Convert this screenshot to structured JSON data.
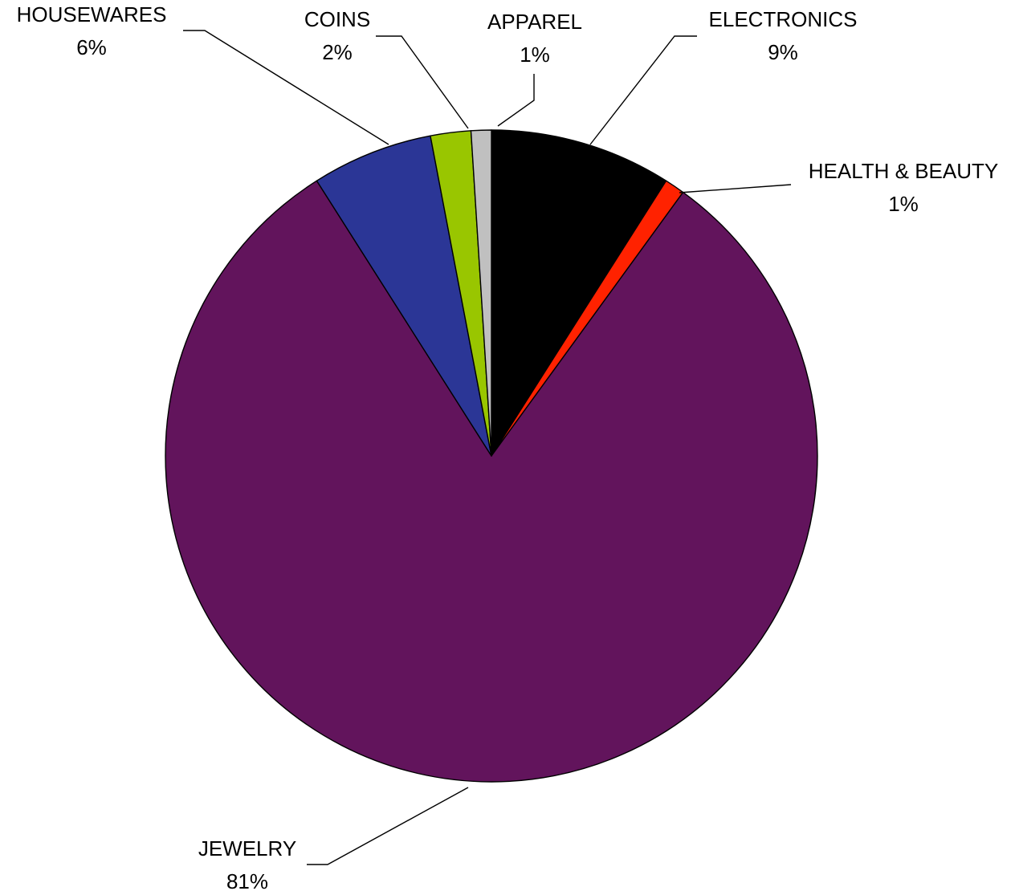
{
  "chart_data": {
    "type": "pie",
    "title": "",
    "start_angle_deg": 0,
    "direction": "clockwise",
    "slices": [
      {
        "label": "ELECTRONICS",
        "value": 9,
        "value_label": "9%",
        "color": "#000000"
      },
      {
        "label": "HEALTH & BEAUTY",
        "value": 1,
        "value_label": "1%",
        "color": "#ff2200"
      },
      {
        "label": "JEWELRY",
        "value": 81,
        "value_label": "81%",
        "color": "#62145c"
      },
      {
        "label": "HOUSEWARES",
        "value": 6,
        "value_label": "6%",
        "color": "#2b3696"
      },
      {
        "label": "COINS",
        "value": 2,
        "value_label": "2%",
        "color": "#99c600"
      },
      {
        "label": "APPAREL",
        "value": 1,
        "value_label": "1%",
        "color": "#c0c0c0"
      }
    ]
  }
}
